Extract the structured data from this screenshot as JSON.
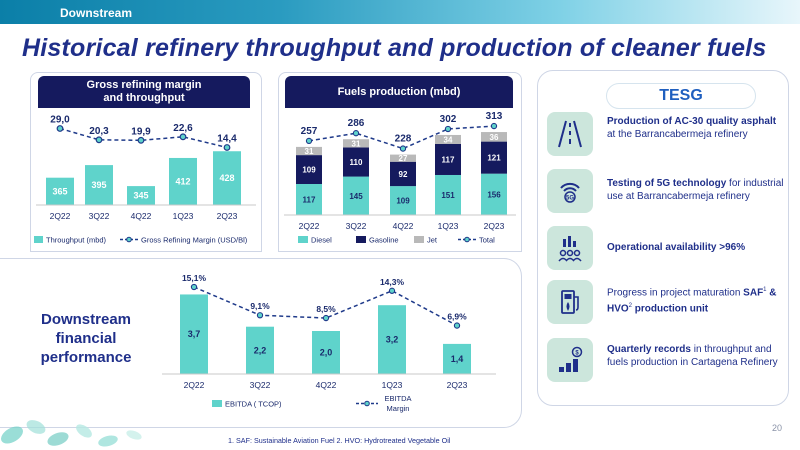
{
  "section": "Downstream",
  "title": "Historical refinery throughput and production of cleaner fuels",
  "page_number": "20",
  "footnote": "1. SAF: Sustainable Aviation Fuel 2. HVO: Hydrotreated Vegetable Oil",
  "financial_label": [
    "Downstream",
    "financial",
    "performance"
  ],
  "colors": {
    "navy": "#151a5e",
    "teal": "#5fd3cb",
    "gray": "#b9b9b9",
    "line": "#1f3a8a",
    "icon_bg": "#cce6dc"
  },
  "chart_data": [
    {
      "type": "bar",
      "title": "Gross refining margin and throughput",
      "title_lines": [
        "Gross refining margin",
        "and throughput"
      ],
      "categories": [
        "2Q22",
        "3Q22",
        "4Q22",
        "1Q23",
        "2Q23"
      ],
      "series": [
        {
          "name": "Throughput (mbd)",
          "type": "bar",
          "values": [
            365,
            395,
            345,
            412,
            428
          ]
        },
        {
          "name": "Gross Refining Margin (USD/Bl)",
          "type": "line",
          "values": [
            29.0,
            20.3,
            19.9,
            22.6,
            14.4
          ],
          "labels": [
            "29,0",
            "20,3",
            "19,9",
            "22,6",
            "14,4"
          ]
        }
      ],
      "legend": [
        "Throughput (mbd)",
        "Gross Refining Margin (USD/Bl)"
      ]
    },
    {
      "type": "bar",
      "stacked": true,
      "title": "Fuels production (mbd)",
      "categories": [
        "2Q22",
        "3Q22",
        "4Q22",
        "1Q23",
        "2Q23"
      ],
      "series": [
        {
          "name": "Diesel",
          "values": [
            117,
            145,
            109,
            151,
            156
          ]
        },
        {
          "name": "Gasoline",
          "values": [
            109,
            110,
            92,
            117,
            121
          ]
        },
        {
          "name": "Jet",
          "values": [
            31,
            31,
            27,
            34,
            36
          ]
        },
        {
          "name": "Total",
          "type": "line",
          "values": [
            257,
            286,
            228,
            302,
            313
          ]
        }
      ],
      "legend": [
        "Diesel",
        "Gasoline",
        "Jet",
        "Total"
      ]
    },
    {
      "type": "bar",
      "categories": [
        "2Q22",
        "3Q22",
        "4Q22",
        "1Q23",
        "2Q23"
      ],
      "series": [
        {
          "name": "EBITDA ( TCOP)",
          "values": [
            3.7,
            2.2,
            2.0,
            3.2,
            1.4
          ],
          "labels": [
            "3,7",
            "2,2",
            "2,0",
            "3,2",
            "1,4"
          ]
        },
        {
          "name": "EBITDA Margin",
          "type": "line",
          "values": [
            15.1,
            9.1,
            8.5,
            14.3,
            6.9
          ],
          "labels": [
            "15,1%",
            "9,1%",
            "8,5%",
            "14,3%",
            "6,9%"
          ]
        }
      ],
      "legend": [
        "EBITDA ( TCOP)",
        "EBITDA Margin"
      ],
      "legend_lines": [
        "EBITDA",
        "Margin"
      ]
    }
  ],
  "tesg": {
    "title": "TESG",
    "items": [
      {
        "icon": "road-icon",
        "bold": "Production of AC-30 quality asphalt",
        "text": " at the Barrancabermeja refinery"
      },
      {
        "icon": "5g-signal-icon",
        "bold": "Testing of 5G technology",
        "text": " for industrial use at Barrancabermeja refinery"
      },
      {
        "icon": "team-chart-icon",
        "bold": "Operational availability >96%",
        "text": ""
      },
      {
        "icon": "fuel-pump-leaf-icon",
        "pre": "Progress in project maturation ",
        "bold": "SAF",
        "sup1": "1",
        "mid": " & HVO",
        "sup2": "2",
        "bold2": " production unit"
      },
      {
        "icon": "coins-growth-icon",
        "bold": "Quarterly records",
        "text": " in throughput and fuels production in Cartagena Refinery"
      }
    ]
  }
}
